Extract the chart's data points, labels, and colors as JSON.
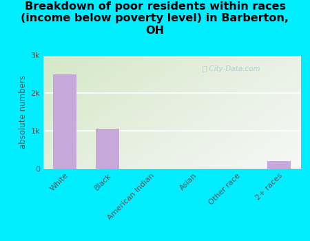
{
  "categories": [
    "White",
    "Black",
    "American Indian",
    "Asian",
    "Other race",
    "2+ races"
  ],
  "values": [
    2500,
    1050,
    8,
    8,
    8,
    200
  ],
  "bar_color": "#c8a8d8",
  "background_color": "#00eeff",
  "plot_bg_topleft": "#d4e8c8",
  "plot_bg_bottomright": "#f8f8f8",
  "title": "Breakdown of poor residents within races\n(income below poverty level) in Barberton,\nOH",
  "ylabel": "absolute numbers",
  "ylim": [
    0,
    3000
  ],
  "yticks": [
    0,
    1000,
    2000,
    3000
  ],
  "ytick_labels": [
    "0",
    "1k",
    "2k",
    "3k"
  ],
  "title_fontsize": 11.5,
  "axis_fontsize": 8.5,
  "tick_fontsize": 8,
  "watermark": "City-Data.com",
  "watermark_icon": "©"
}
